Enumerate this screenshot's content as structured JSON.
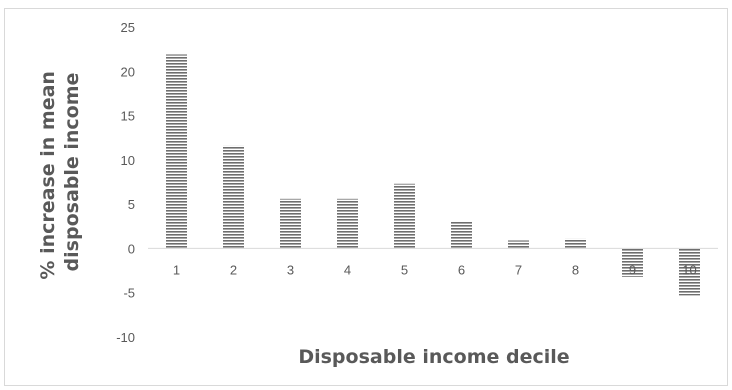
{
  "chart_data": {
    "type": "bar",
    "categories": [
      "1",
      "2",
      "3",
      "4",
      "5",
      "6",
      "7",
      "8",
      "9",
      "10"
    ],
    "values": [
      21.9,
      11.6,
      5.6,
      5.6,
      7.3,
      3.0,
      0.9,
      1.1,
      -3.2,
      -5.3
    ],
    "xlabel": "Disposable income decile",
    "ylabel_lines": [
      "% increase in mean",
      "disposable income"
    ],
    "ylim": [
      -10,
      25
    ],
    "yticks": [
      25,
      20,
      15,
      10,
      5,
      0,
      -5,
      -10
    ],
    "grid": false,
    "legend": "none",
    "bar_style": "horizontal-stripes",
    "bar_color": "#7f7f7f"
  }
}
